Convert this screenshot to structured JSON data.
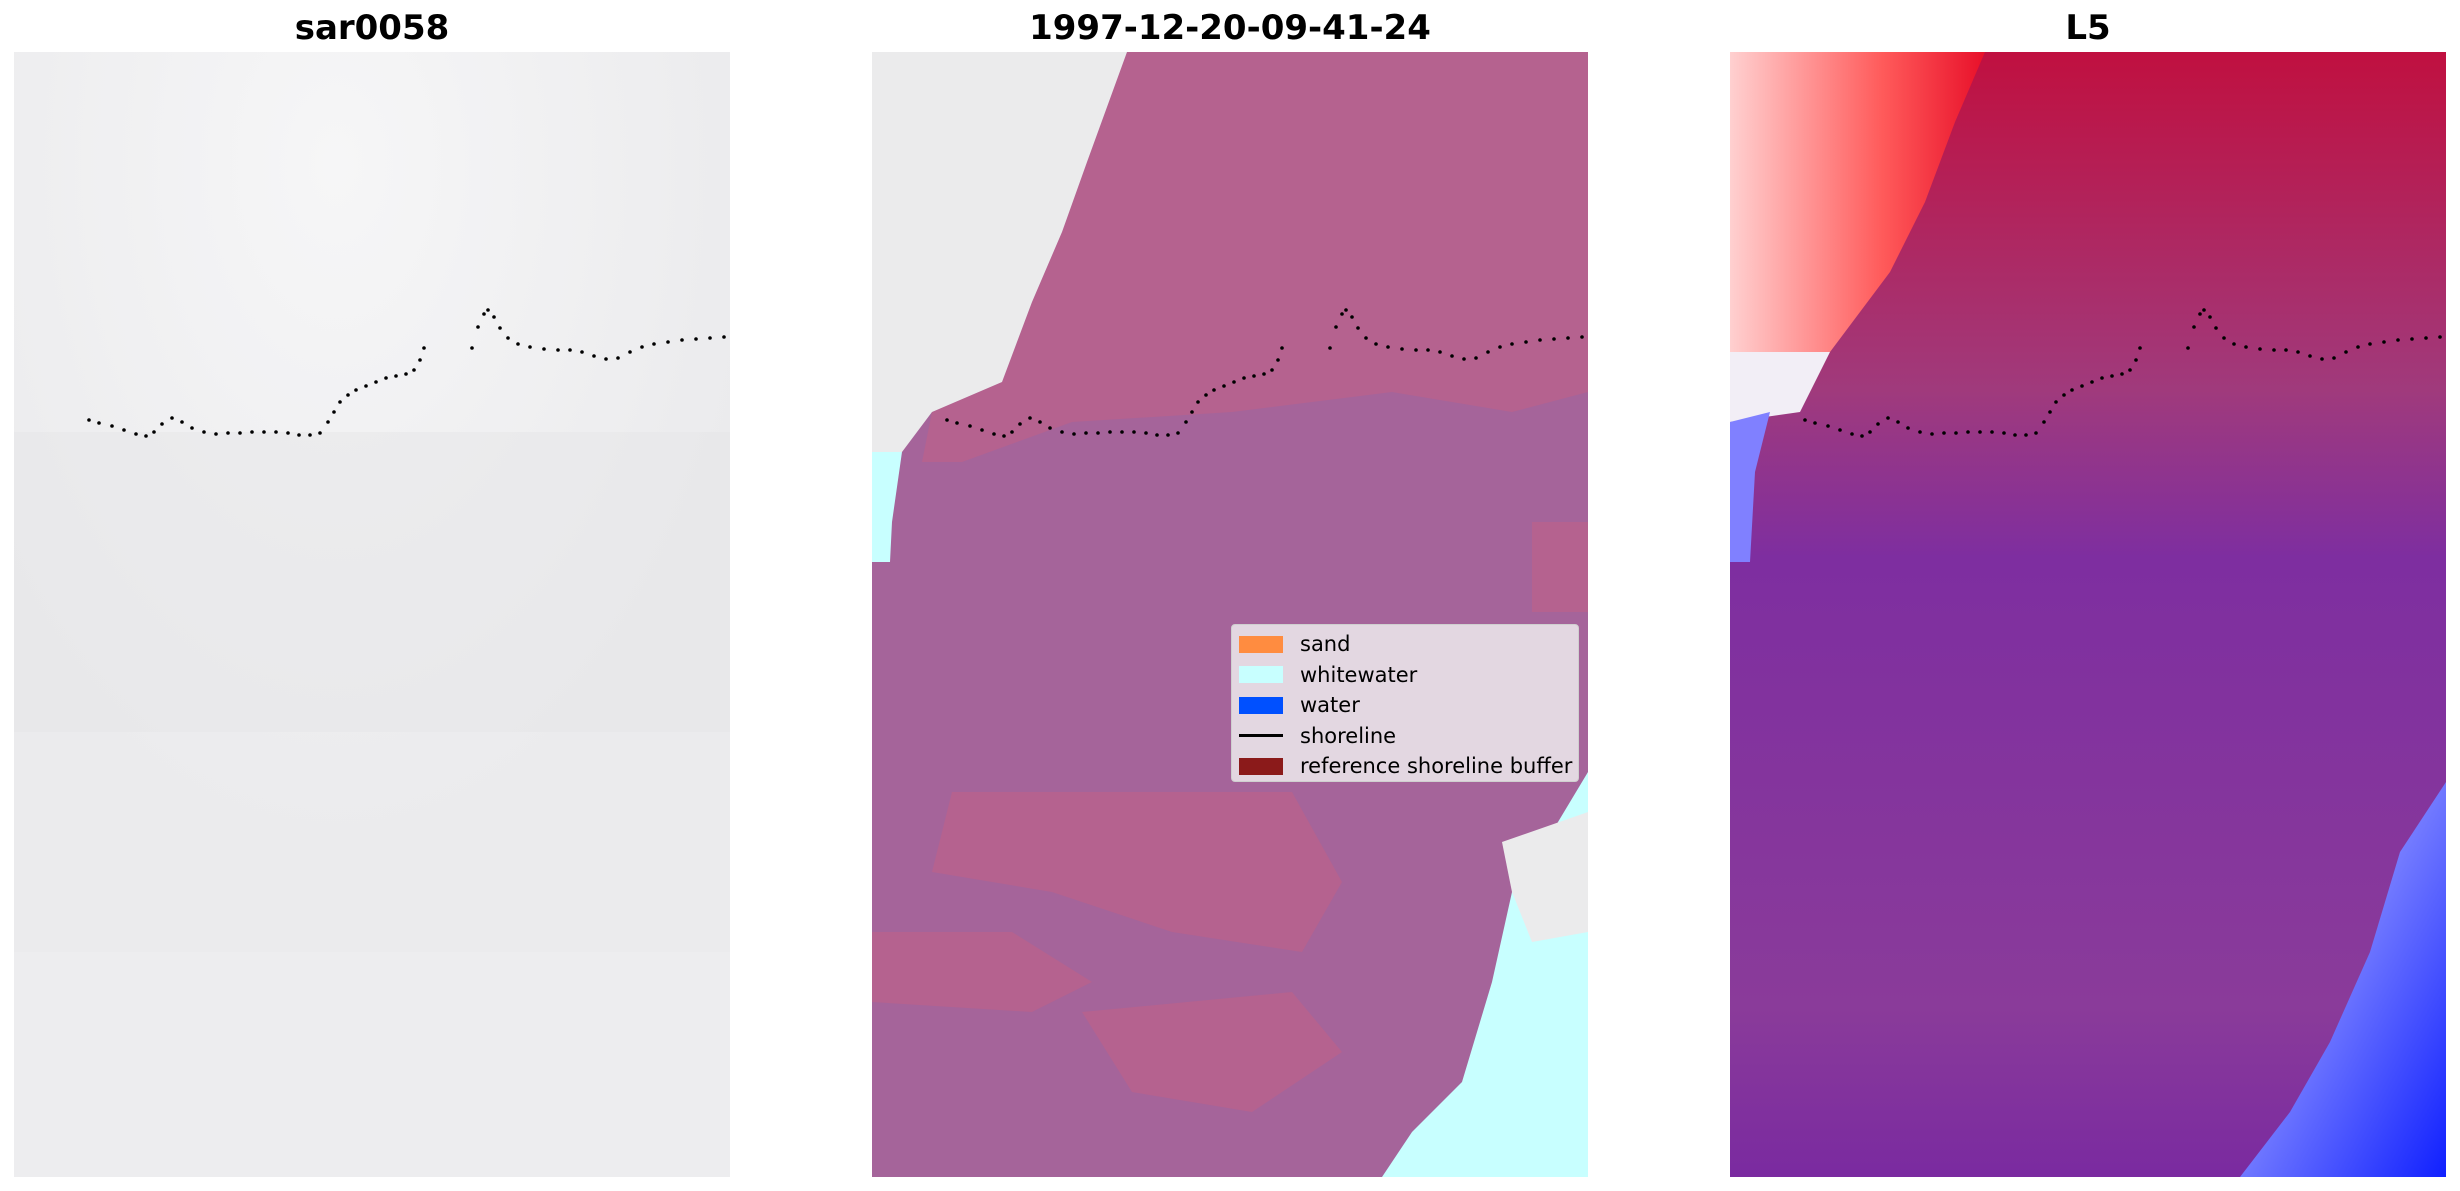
{
  "panels": [
    {
      "title": "sar0058"
    },
    {
      "title": "1997-12-20-09-41-24"
    },
    {
      "title": "L5"
    }
  ],
  "legend": {
    "items": [
      {
        "label": "sand",
        "color": "#ff8c40",
        "kind": "patch"
      },
      {
        "label": "whitewater",
        "color": "#c8ffff",
        "kind": "patch"
      },
      {
        "label": "water",
        "color": "#0050ff",
        "kind": "patch"
      },
      {
        "label": "shoreline",
        "color": "#000000",
        "kind": "line"
      },
      {
        "label": "reference shoreline buffer",
        "color": "#8b1a1a",
        "kind": "patch"
      }
    ]
  },
  "colors": {
    "rgb_background": "#ececee",
    "classified_base": "#a5649a",
    "classified_pink": "#b5628f",
    "classified_whitewater": "#c8ffff",
    "index_red": "#e8102a",
    "index_purple": "#7a2a9e",
    "index_blue": "#1020ff"
  }
}
